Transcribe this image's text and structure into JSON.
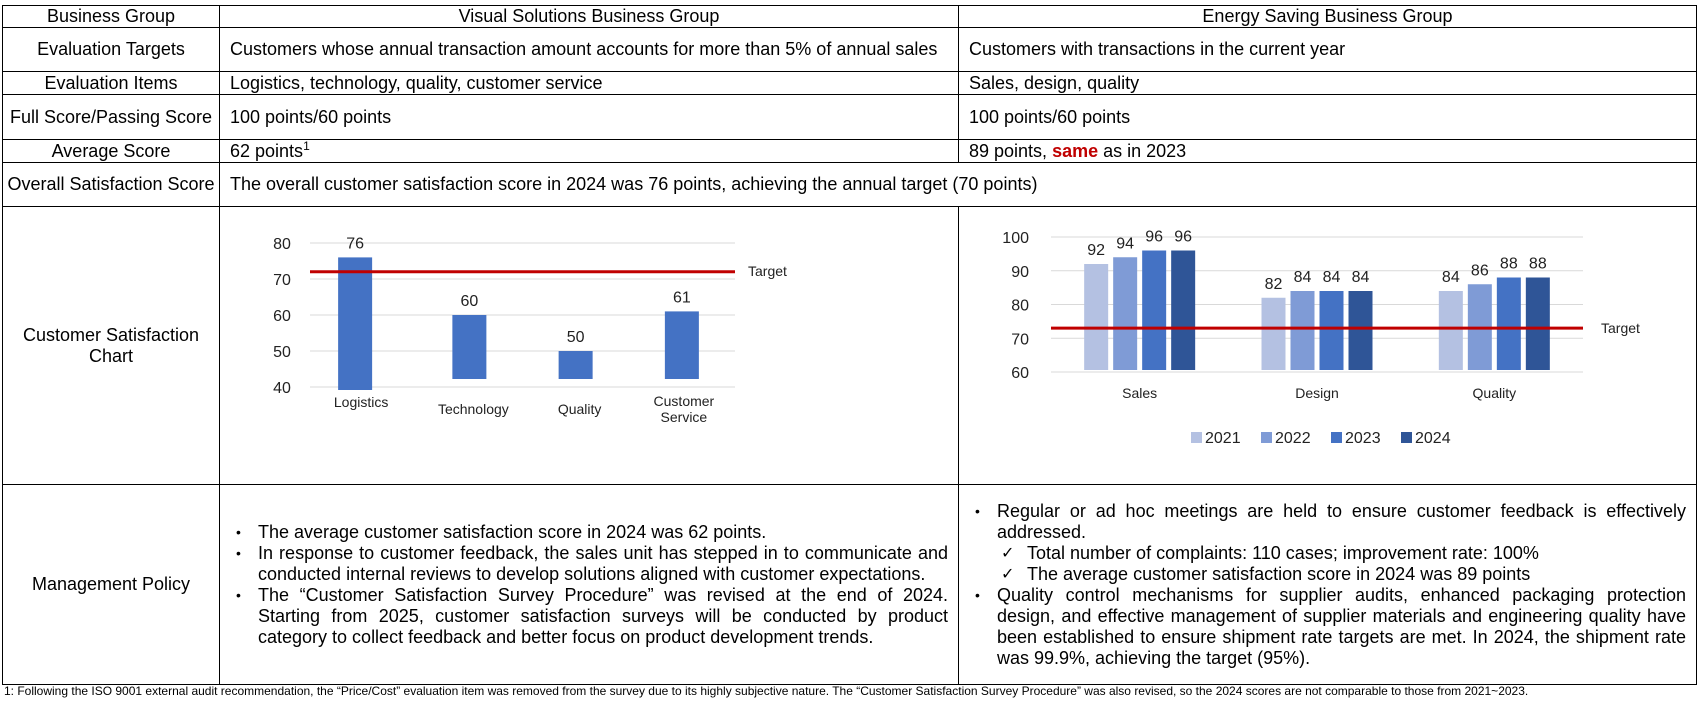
{
  "table": {
    "header": {
      "col1": "Business Group",
      "col2": "Visual Solutions Business Group",
      "col3": "Energy Saving Business Group"
    },
    "rows": {
      "targets": {
        "label": "Evaluation Targets",
        "visual": "Customers whose annual transaction amount accounts for more than 5% of annual sales",
        "energy": "Customers with transactions in the current year"
      },
      "items": {
        "label": "Evaluation Items",
        "visual": "Logistics, technology, quality, customer service",
        "energy": "Sales, design, quality"
      },
      "score": {
        "label": "Full Score/Passing Score",
        "visual": "100 points/60 points",
        "energy": "100 points/60 points"
      },
      "average": {
        "label": "Average Score",
        "visual": "62 points",
        "visual_sup": "1",
        "energy_pre": "89 points, ",
        "energy_em": "same",
        "energy_post": " as in 2023"
      },
      "overall": {
        "label": "Overall Satisfaction Score",
        "text": "The overall customer satisfaction score in 2024 was 76 points, achieving the annual target (70 points)"
      },
      "chart_row": {
        "label": "Customer Satisfaction Chart"
      },
      "policy": {
        "label": "Management Policy",
        "visual": [
          "The average customer satisfaction score in 2024 was 62 points.",
          "In response to customer feedback, the sales unit has stepped in to communicate and conducted internal reviews to develop solutions aligned with customer expectations.",
          "The “Customer Satisfaction Survey Procedure” was revised at the end of 2024. Starting from 2025, customer satisfaction surveys will be conducted by product category to collect feedback and better focus on product development trends."
        ],
        "energy_b1": "Regular or ad hoc meetings are held to ensure customer feedback is effectively addressed.",
        "energy_b1_sub": [
          "Total number of complaints: 110 cases; improvement rate: 100%",
          "The average customer satisfaction score in 2024 was 89 points"
        ],
        "energy_b2": "Quality control mechanisms for supplier audits, enhanced packaging protection design, and effective management of supplier materials and engineering quality have been established to ensure shipment rate targets are met. In 2024, the shipment rate was 99.9%, achieving the target (95%)."
      }
    }
  },
  "footnote": "1: Following the ISO 9001 external audit recommendation, the “Price/Cost” evaluation item was removed from the survey due to its highly subjective nature. The “Customer Satisfaction Survey Procedure” was also revised, so the 2024 scores are not comparable to those from 2021~2023.",
  "chart_data": [
    {
      "type": "bar",
      "categories": [
        "Logistics",
        "Technology",
        "Quality",
        "Customer Service"
      ],
      "values": [
        76,
        60,
        50,
        61
      ],
      "yticks": [
        40,
        50,
        60,
        70,
        80
      ],
      "ylim": [
        40,
        80
      ],
      "target": {
        "value": 72,
        "label": "Target",
        "color": "#c00000"
      },
      "bar_color": "#4472c4",
      "grid": true
    },
    {
      "type": "bar",
      "categories": [
        "Sales",
        "Design",
        "Quality"
      ],
      "series": [
        {
          "name": "2021",
          "values": [
            92,
            82,
            84
          ],
          "color": "#b4c1e2"
        },
        {
          "name": "2022",
          "values": [
            94,
            84,
            86
          ],
          "color": "#7f9bd6"
        },
        {
          "name": "2023",
          "values": [
            96,
            84,
            88
          ],
          "color": "#4472c4"
        },
        {
          "name": "2024",
          "values": [
            96,
            84,
            88
          ],
          "color": "#2f5597"
        }
      ],
      "yticks": [
        60,
        70,
        80,
        90,
        100
      ],
      "ylim": [
        60,
        100
      ],
      "target": {
        "value": 73,
        "label": "Target",
        "color": "#c00000"
      },
      "legend": "bottom",
      "grid": true
    }
  ]
}
